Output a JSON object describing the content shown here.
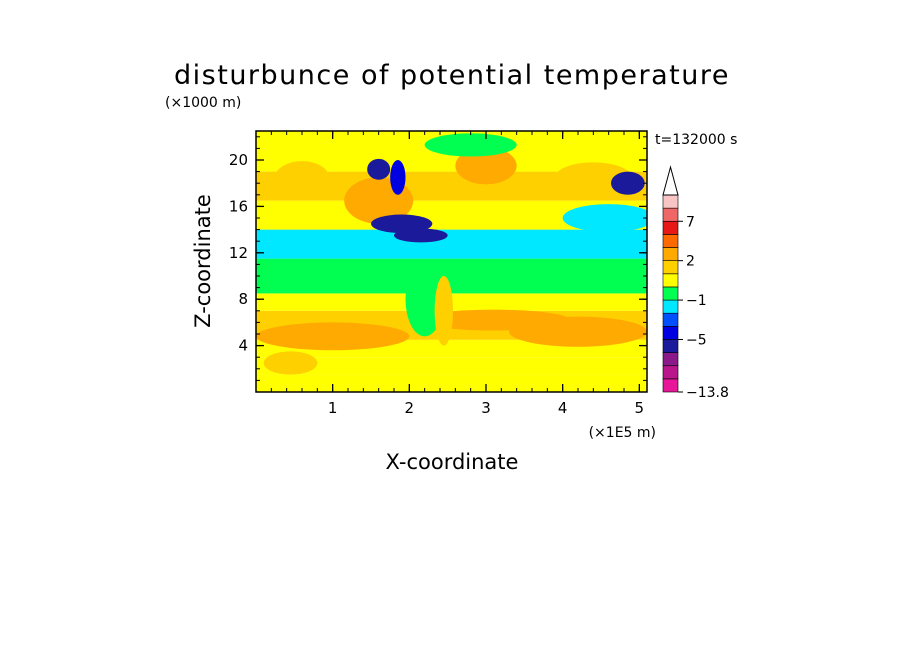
{
  "chart_data": {
    "type": "heatmap",
    "title": "disturbunce of potential temperature",
    "time_label": "t=132000 s",
    "xlabel": "X-coordinate",
    "ylabel": "Z-coordinate",
    "x_unit": "(×1E5 m)",
    "y_unit": "(×1000 m)",
    "xlim": [
      0,
      5.1
    ],
    "ylim": [
      0,
      22.5
    ],
    "x_ticks": [
      1,
      2,
      3,
      4,
      5
    ],
    "y_ticks": [
      4,
      8,
      12,
      16,
      20
    ],
    "colorbar": {
      "labels": [
        "7",
        "2",
        "−1",
        "−5",
        "−13.8"
      ],
      "label_levels": [
        7,
        2,
        -1,
        -5,
        -13.8
      ],
      "levels": [
        -13.8,
        -11,
        -9,
        -7,
        -5,
        -3,
        -2,
        -1,
        0,
        1,
        2,
        3,
        5,
        7,
        9,
        12
      ],
      "colors": [
        "#e8179a",
        "#b8168a",
        "#8a1a8a",
        "#1a1a9a",
        "#0000e0",
        "#0050ff",
        "#00e8ff",
        "#00ff50",
        "#ffff00",
        "#ffd000",
        "#ffaa00",
        "#ff6a00",
        "#e81818",
        "#ee6666",
        "#f8c4c4"
      ]
    },
    "field_bands": [
      {
        "z_from": 0,
        "z_to": 1.5,
        "value": 0.5
      },
      {
        "z_from": 1.5,
        "z_to": 3,
        "value": 0.4
      },
      {
        "z_from": 3,
        "z_to": 4.5,
        "value": 0.8
      },
      {
        "z_from": 4.5,
        "z_to": 7,
        "value": 1.6
      },
      {
        "z_from": 7,
        "z_to": 8.5,
        "value": 0.7
      },
      {
        "z_from": 8.5,
        "z_to": 11.5,
        "value": -0.5
      },
      {
        "z_from": 11.5,
        "z_to": 14,
        "value": -1.5
      },
      {
        "z_from": 14,
        "z_to": 16.5,
        "value": 0.4
      },
      {
        "z_from": 16.5,
        "z_to": 19,
        "value": 1.2
      },
      {
        "z_from": 19,
        "z_to": 22.5,
        "value": 0.3
      }
    ],
    "field_features": [
      {
        "x": 0.45,
        "z": 2.5,
        "rx": 0.35,
        "rz": 1.0,
        "value": 1.6
      },
      {
        "x": 1.0,
        "z": 4.8,
        "rx": 1.0,
        "rz": 1.2,
        "value": 2.4
      },
      {
        "x": 4.2,
        "z": 5.2,
        "rx": 0.9,
        "rz": 1.3,
        "value": 2.4
      },
      {
        "x": 3.1,
        "z": 6.2,
        "rx": 1.0,
        "rz": 0.9,
        "value": 2.3
      },
      {
        "x": 2.2,
        "z": 8.0,
        "rx": 0.25,
        "rz": 3.2,
        "value": -0.5
      },
      {
        "x": 2.45,
        "z": 7.0,
        "rx": 0.12,
        "rz": 3.0,
        "value": 1.6
      },
      {
        "x": 1.6,
        "z": 16.5,
        "rx": 0.45,
        "rz": 2.0,
        "value": 2.4
      },
      {
        "x": 3.0,
        "z": 19.5,
        "rx": 0.4,
        "rz": 1.6,
        "value": 2.3
      },
      {
        "x": 0.6,
        "z": 18.5,
        "rx": 0.35,
        "rz": 1.4,
        "value": 1.5
      },
      {
        "x": 4.4,
        "z": 18.5,
        "rx": 0.5,
        "rz": 1.3,
        "value": 1.5
      },
      {
        "x": 1.9,
        "z": 14.5,
        "rx": 0.4,
        "rz": 0.8,
        "value": -5.5
      },
      {
        "x": 2.15,
        "z": 13.5,
        "rx": 0.35,
        "rz": 0.6,
        "value": -5.5
      },
      {
        "x": 1.6,
        "z": 19.2,
        "rx": 0.15,
        "rz": 0.9,
        "value": -5.5
      },
      {
        "x": 1.85,
        "z": 18.5,
        "rx": 0.1,
        "rz": 1.5,
        "value": -4.0
      },
      {
        "x": 4.85,
        "z": 18.0,
        "rx": 0.22,
        "rz": 1.0,
        "value": -5.5
      },
      {
        "x": 4.6,
        "z": 15.0,
        "rx": 0.6,
        "rz": 1.2,
        "value": -1.5
      },
      {
        "x": 0.8,
        "z": 12.8,
        "rx": 0.8,
        "rz": 1.0,
        "value": -1.5
      },
      {
        "x": 2.8,
        "z": 21.3,
        "rx": 0.6,
        "rz": 1.0,
        "value": -0.5
      }
    ]
  }
}
